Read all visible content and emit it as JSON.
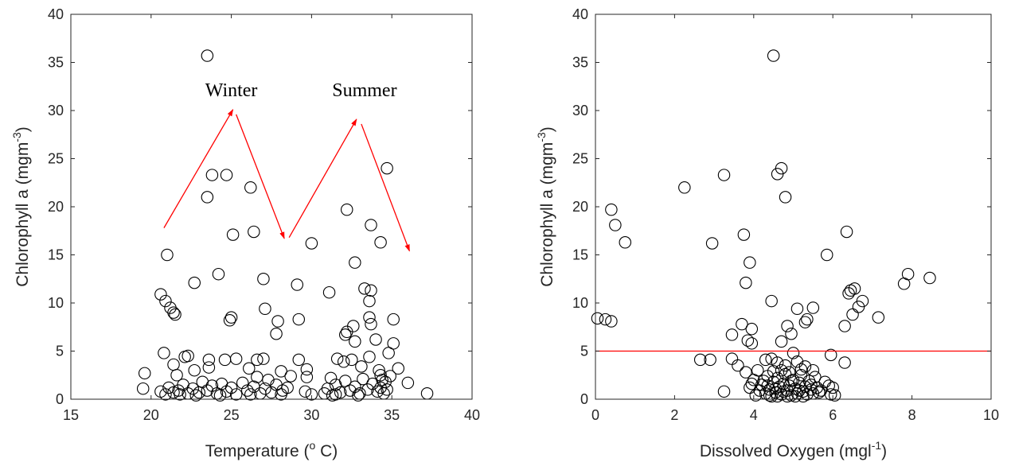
{
  "colors": {
    "marker": "#000000",
    "arrow": "#ff0000",
    "threshold_line": "#ff0000",
    "axis": "#262626"
  },
  "chart_data": [
    {
      "type": "scatter",
      "title": "",
      "xlabel": "Temperature (",
      "xlabel_sup": "o",
      "xlabel_tail": " C)",
      "ylabel": "Chlorophyll a (mgm",
      "ylabel_sup": "-3",
      "ylabel_tail": ")",
      "xlim": [
        15,
        40
      ],
      "ylim": [
        0,
        40
      ],
      "xticks": [
        15,
        20,
        25,
        30,
        35,
        40
      ],
      "yticks": [
        0,
        5,
        10,
        15,
        20,
        25,
        30,
        35,
        40
      ],
      "grid": false,
      "marker": "open-circle",
      "annotations": [
        {
          "text": "Winter",
          "x": 25,
          "y": 31.5
        },
        {
          "text": "Summer",
          "x": 33.3,
          "y": 31.5
        }
      ],
      "arrows": [
        {
          "from": [
            20.8,
            17.8
          ],
          "to": [
            25.1,
            30.1
          ]
        },
        {
          "from": [
            25.3,
            29.6
          ],
          "to": [
            28.3,
            16.7
          ]
        },
        {
          "from": [
            28.6,
            16.8
          ],
          "to": [
            32.8,
            29.1
          ]
        },
        {
          "from": [
            33.1,
            28.6
          ],
          "to": [
            36.1,
            15.4
          ]
        }
      ],
      "points": [
        [
          23.5,
          35.7
        ],
        [
          23.5,
          21.0
        ],
        [
          23.8,
          23.3
        ],
        [
          24.7,
          23.3
        ],
        [
          26.2,
          22.0
        ],
        [
          21.0,
          15.0
        ],
        [
          25.1,
          17.1
        ],
        [
          26.4,
          17.4
        ],
        [
          20.6,
          10.9
        ],
        [
          20.9,
          10.2
        ],
        [
          21.2,
          9.5
        ],
        [
          21.4,
          9.0
        ],
        [
          21.5,
          8.8
        ],
        [
          22.7,
          12.1
        ],
        [
          24.2,
          13.0
        ],
        [
          24.9,
          8.2
        ],
        [
          25.0,
          8.5
        ],
        [
          27.0,
          12.5
        ],
        [
          27.1,
          9.4
        ],
        [
          27.9,
          8.1
        ],
        [
          27.8,
          6.8
        ],
        [
          29.1,
          11.9
        ],
        [
          29.2,
          8.3
        ],
        [
          30.0,
          16.2
        ],
        [
          31.1,
          11.1
        ],
        [
          32.2,
          19.7
        ],
        [
          33.7,
          18.1
        ],
        [
          34.3,
          16.3
        ],
        [
          34.7,
          24.0
        ],
        [
          32.7,
          14.2
        ],
        [
          33.3,
          11.5
        ],
        [
          33.7,
          11.3
        ],
        [
          33.6,
          10.2
        ],
        [
          33.6,
          8.5
        ],
        [
          33.7,
          7.8
        ],
        [
          32.2,
          7.0
        ],
        [
          32.1,
          6.7
        ],
        [
          32.6,
          7.6
        ],
        [
          35.1,
          8.3
        ],
        [
          34.0,
          6.2
        ],
        [
          35.1,
          5.8
        ],
        [
          32.7,
          6.0
        ],
        [
          34.8,
          4.8
        ],
        [
          35.4,
          3.2
        ],
        [
          36.0,
          1.7
        ],
        [
          37.2,
          0.6
        ],
        [
          19.6,
          2.7
        ],
        [
          19.5,
          1.1
        ],
        [
          20.8,
          4.8
        ],
        [
          21.4,
          3.6
        ],
        [
          21.6,
          2.5
        ],
        [
          22.1,
          4.4
        ],
        [
          22.3,
          4.5
        ],
        [
          22.7,
          3.0
        ],
        [
          23.6,
          4.1
        ],
        [
          23.6,
          3.3
        ],
        [
          24.6,
          4.1
        ],
        [
          25.3,
          4.2
        ],
        [
          26.1,
          3.2
        ],
        [
          26.6,
          4.1
        ],
        [
          27.0,
          4.2
        ],
        [
          26.6,
          2.3
        ],
        [
          27.3,
          2.0
        ],
        [
          28.1,
          2.9
        ],
        [
          28.7,
          2.4
        ],
        [
          29.2,
          4.1
        ],
        [
          29.7,
          3.1
        ],
        [
          29.7,
          2.3
        ],
        [
          31.2,
          2.2
        ],
        [
          31.6,
          4.2
        ],
        [
          32.0,
          3.9
        ],
        [
          32.5,
          4.1
        ],
        [
          33.1,
          3.4
        ],
        [
          33.6,
          4.4
        ],
        [
          34.2,
          3.0
        ],
        [
          34.3,
          2.5
        ],
        [
          34.9,
          2.4
        ],
        [
          20.6,
          0.8
        ],
        [
          20.9,
          0.5
        ],
        [
          21.1,
          1.2
        ],
        [
          21.4,
          0.7
        ],
        [
          21.7,
          0.9
        ],
        [
          22.0,
          1.5
        ],
        [
          22.3,
          0.6
        ],
        [
          22.6,
          1.1
        ],
        [
          22.8,
          0.4
        ],
        [
          23.2,
          1.8
        ],
        [
          23.5,
          0.9
        ],
        [
          23.8,
          1.4
        ],
        [
          24.1,
          0.6
        ],
        [
          24.4,
          1.6
        ],
        [
          24.7,
          0.8
        ],
        [
          25.0,
          1.2
        ],
        [
          25.3,
          0.5
        ],
        [
          25.7,
          1.7
        ],
        [
          26.0,
          0.9
        ],
        [
          26.4,
          1.3
        ],
        [
          26.8,
          0.6
        ],
        [
          27.1,
          1.1
        ],
        [
          27.5,
          0.7
        ],
        [
          27.8,
          1.5
        ],
        [
          28.2,
          0.9
        ],
        [
          28.5,
          1.2
        ],
        [
          28.1,
          0.5
        ],
        [
          29.6,
          0.8
        ],
        [
          30.0,
          0.5
        ],
        [
          30.8,
          0.6
        ],
        [
          31.0,
          1.1
        ],
        [
          31.3,
          0.4
        ],
        [
          31.5,
          1.5
        ],
        [
          31.8,
          0.7
        ],
        [
          32.1,
          1.9
        ],
        [
          32.4,
          0.9
        ],
        [
          32.7,
          1.3
        ],
        [
          33.0,
          0.6
        ],
        [
          33.2,
          2.1
        ],
        [
          33.5,
          1.0
        ],
        [
          33.8,
          1.6
        ],
        [
          34.1,
          0.8
        ],
        [
          34.3,
          1.2
        ],
        [
          34.5,
          0.6
        ],
        [
          34.6,
          1.8
        ],
        [
          34.4,
          2.0
        ],
        [
          34.7,
          1.0
        ],
        [
          21.8,
          0.5
        ],
        [
          23.0,
          0.7
        ],
        [
          24.3,
          0.4
        ],
        [
          26.2,
          0.5
        ],
        [
          31.5,
          0.5
        ],
        [
          32.9,
          0.4
        ]
      ]
    },
    {
      "type": "scatter",
      "title": "",
      "xlabel": "Dissolved Oxygen (mgl",
      "xlabel_sup": "-1",
      "xlabel_tail": ")",
      "ylabel": "Chlorophyll a (mgm",
      "ylabel_sup": "-3",
      "ylabel_tail": ")",
      "xlim": [
        0,
        10
      ],
      "ylim": [
        0,
        40
      ],
      "xticks": [
        0,
        2,
        4,
        6,
        8,
        10
      ],
      "yticks": [
        0,
        5,
        10,
        15,
        20,
        25,
        30,
        35,
        40
      ],
      "grid": false,
      "marker": "open-circle",
      "hline": 5,
      "points": [
        [
          4.5,
          35.7
        ],
        [
          4.7,
          24.0
        ],
        [
          4.6,
          23.4
        ],
        [
          3.25,
          23.3
        ],
        [
          2.25,
          22.0
        ],
        [
          4.8,
          21.0
        ],
        [
          0.4,
          19.7
        ],
        [
          0.5,
          18.1
        ],
        [
          0.75,
          16.3
        ],
        [
          2.95,
          16.2
        ],
        [
          3.75,
          17.1
        ],
        [
          6.35,
          17.4
        ],
        [
          5.85,
          15.0
        ],
        [
          3.9,
          14.2
        ],
        [
          7.9,
          13.0
        ],
        [
          7.8,
          12.0
        ],
        [
          8.45,
          12.6
        ],
        [
          3.8,
          12.1
        ],
        [
          4.45,
          10.2
        ],
        [
          6.45,
          11.3
        ],
        [
          6.55,
          11.5
        ],
        [
          6.4,
          11.0
        ],
        [
          6.75,
          10.2
        ],
        [
          6.65,
          9.6
        ],
        [
          5.1,
          9.4
        ],
        [
          5.5,
          9.5
        ],
        [
          5.35,
          8.3
        ],
        [
          5.3,
          8.0
        ],
        [
          6.5,
          8.8
        ],
        [
          7.15,
          8.5
        ],
        [
          6.3,
          7.6
        ],
        [
          4.95,
          6.8
        ],
        [
          4.85,
          7.6
        ],
        [
          3.95,
          7.3
        ],
        [
          3.7,
          7.8
        ],
        [
          3.45,
          6.7
        ],
        [
          3.95,
          5.8
        ],
        [
          3.85,
          6.1
        ],
        [
          4.7,
          6.0
        ],
        [
          0.05,
          8.4
        ],
        [
          0.25,
          8.3
        ],
        [
          0.4,
          8.1
        ],
        [
          2.65,
          4.1
        ],
        [
          2.9,
          4.1
        ],
        [
          3.45,
          4.2
        ],
        [
          3.6,
          3.5
        ],
        [
          3.25,
          0.8
        ],
        [
          5.0,
          4.8
        ],
        [
          5.95,
          4.6
        ],
        [
          6.3,
          3.8
        ],
        [
          5.9,
          1.4
        ],
        [
          6.0,
          1.2
        ],
        [
          5.95,
          0.5
        ],
        [
          6.05,
          0.4
        ],
        [
          4.3,
          4.1
        ],
        [
          4.45,
          4.2
        ],
        [
          4.6,
          3.8
        ],
        [
          4.8,
          3.5
        ],
        [
          5.1,
          3.9
        ],
        [
          5.3,
          3.4
        ],
        [
          5.5,
          3.0
        ],
        [
          3.8,
          2.8
        ],
        [
          3.9,
          1.2
        ],
        [
          4.0,
          2.0
        ],
        [
          4.1,
          3.0
        ],
        [
          4.2,
          1.5
        ],
        [
          4.3,
          0.6
        ],
        [
          4.35,
          2.4
        ],
        [
          4.4,
          1.0
        ],
        [
          4.45,
          0.3
        ],
        [
          4.5,
          1.8
        ],
        [
          4.55,
          0.7
        ],
        [
          4.6,
          2.2
        ],
        [
          4.65,
          1.3
        ],
        [
          4.7,
          0.5
        ],
        [
          4.75,
          1.6
        ],
        [
          4.8,
          2.6
        ],
        [
          4.85,
          0.9
        ],
        [
          4.9,
          1.4
        ],
        [
          4.95,
          0.4
        ],
        [
          5.0,
          2.0
        ],
        [
          5.05,
          1.1
        ],
        [
          5.1,
          0.6
        ],
        [
          5.15,
          1.7
        ],
        [
          5.2,
          2.5
        ],
        [
          5.25,
          0.8
        ],
        [
          5.3,
          1.3
        ],
        [
          5.35,
          0.5
        ],
        [
          5.4,
          1.9
        ],
        [
          5.45,
          1.0
        ],
        [
          5.5,
          0.6
        ],
        [
          5.55,
          2.3
        ],
        [
          5.6,
          1.2
        ],
        [
          5.65,
          0.7
        ],
        [
          4.15,
          0.9
        ],
        [
          4.25,
          1.9
        ],
        [
          4.5,
          2.9
        ],
        [
          4.7,
          3.0
        ],
        [
          4.9,
          2.8
        ],
        [
          5.2,
          3.1
        ],
        [
          4.05,
          0.4
        ],
        [
          4.35,
          1.4
        ],
        [
          4.55,
          1.1
        ],
        [
          4.75,
          0.8
        ],
        [
          4.95,
          1.9
        ],
        [
          5.15,
          0.9
        ],
        [
          5.45,
          1.5
        ],
        [
          5.7,
          0.9
        ],
        [
          5.8,
          1.8
        ],
        [
          3.95,
          1.6
        ],
        [
          4.6,
          0.3
        ],
        [
          4.85,
          0.3
        ],
        [
          5.05,
          0.3
        ],
        [
          5.25,
          0.3
        ],
        [
          4.4,
          0.4
        ]
      ]
    }
  ]
}
